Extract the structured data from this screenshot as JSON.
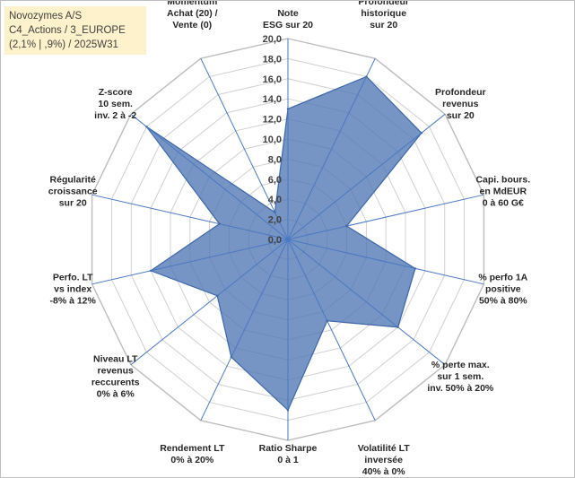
{
  "header": {
    "line1": "Novozymes A/S",
    "line2": "C4_Actions / 3_EUROPE",
    "line3": "(2,1% | ,9%) / 2025W31"
  },
  "chart_data": {
    "type": "radar",
    "title": "",
    "range": [
      0,
      20
    ],
    "ticks": [
      "0,0",
      "2,0",
      "4,0",
      "6,0",
      "8,0",
      "10,0",
      "12,0",
      "14,0",
      "16,0",
      "18,0",
      "20,0"
    ],
    "axes": [
      {
        "label": [
          "Note",
          "ESG sur 20"
        ],
        "value": 13
      },
      {
        "label": [
          "Profondeur",
          "historique",
          "sur 20"
        ],
        "value": 18
      },
      {
        "label": [
          "Profondeur",
          "revenus",
          "sur 20"
        ],
        "value": 17
      },
      {
        "label": [
          "Capi. bours.",
          "en MdEUR",
          "0 à 60 G€"
        ],
        "value": 6
      },
      {
        "label": [
          "% perfo 1A",
          "positive",
          "50% à 80%"
        ],
        "value": 13
      },
      {
        "label": [
          "% perte max.",
          "sur 1 sem.",
          "inv. 50% à 20%"
        ],
        "value": 14
      },
      {
        "label": [
          "Volatilité LT",
          "inversée",
          "40% à 0%"
        ],
        "value": 9
      },
      {
        "label": [
          "Ratio Sharpe",
          "0 à 1"
        ],
        "value": 17
      },
      {
        "label": [
          "Rendement LT",
          "0% à 20%"
        ],
        "value": 13
      },
      {
        "label": [
          "Niveau LT",
          "revenus",
          "reccurents",
          "0% à 6%"
        ],
        "value": 9
      },
      {
        "label": [
          "Perfo. LT",
          "vs index",
          "-8% à 12%"
        ],
        "value": 14
      },
      {
        "label": [
          "Régularité",
          "croissance",
          "sur 20"
        ],
        "value": 7
      },
      {
        "label": [
          "Z-score",
          "10 sem.",
          "inv. 2 à -2"
        ],
        "value": 18
      },
      {
        "label": [
          "Momentum",
          "Achat (20) /",
          "Vente (0)"
        ],
        "value": 3
      }
    ],
    "colors": {
      "fill": "#4f76b4",
      "fill_opacity": 0.78,
      "stroke": "#3d67a8",
      "grid": "#d0d0d0",
      "axis": "#4a78c2"
    },
    "grid": true,
    "legend": "none"
  }
}
